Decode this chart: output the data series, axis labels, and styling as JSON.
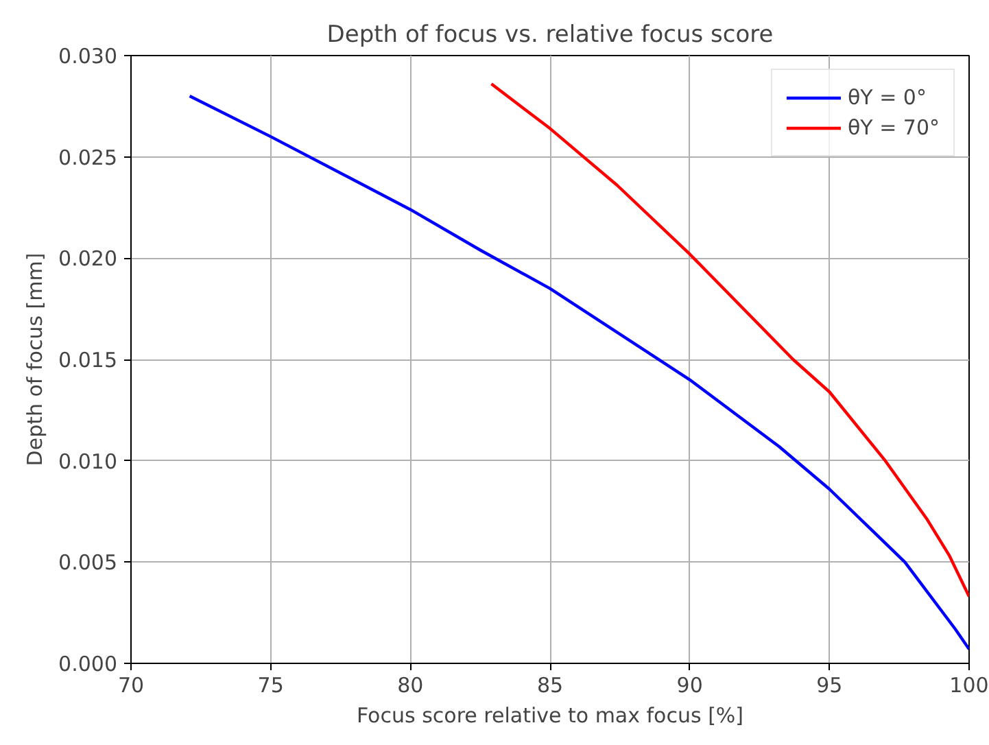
{
  "chart_data": {
    "type": "line",
    "title": "Depth of focus vs. relative focus score",
    "xlabel": "Focus score relative to max focus [%]",
    "ylabel": "Depth of focus [mm]",
    "xlim": [
      70,
      100
    ],
    "xticks": [
      70,
      75,
      80,
      85,
      90,
      95,
      100
    ],
    "ylim": [
      0,
      0.03
    ],
    "yticks": [
      {
        "value": 0,
        "label": "0.000"
      },
      {
        "value": 0.005,
        "label": "0.005"
      },
      {
        "value": 0.01,
        "label": "0.010"
      },
      {
        "value": 0.015,
        "label": "0.015"
      },
      {
        "value": 0.02,
        "label": "0.020"
      },
      {
        "value": 0.025,
        "label": "0.025"
      },
      {
        "value": 0.03,
        "label": "0.030"
      }
    ],
    "grid": true,
    "legend": "top right",
    "line_style": "solid",
    "marker": "none",
    "series": [
      {
        "name": "θY = 0°",
        "color": "#0000ff",
        "x": [
          72.1,
          75,
          80,
          82.5,
          85,
          90,
          93.2,
          95,
          97.7,
          99.5,
          100
        ],
        "values": [
          0.028,
          0.026,
          0.0224,
          0.0204,
          0.0185,
          0.014,
          0.0107,
          0.0086,
          0.005,
          0.0017,
          0.0007
        ]
      },
      {
        "name": "θY = 70°",
        "color": "#ff0000",
        "x": [
          82.9,
          85,
          87.4,
          90,
          93.7,
          95,
          97,
          98.5,
          99.3,
          100
        ],
        "values": [
          0.0286,
          0.0264,
          0.0236,
          0.0202,
          0.015,
          0.0134,
          0.01,
          0.0071,
          0.0053,
          0.0033
        ]
      }
    ]
  }
}
